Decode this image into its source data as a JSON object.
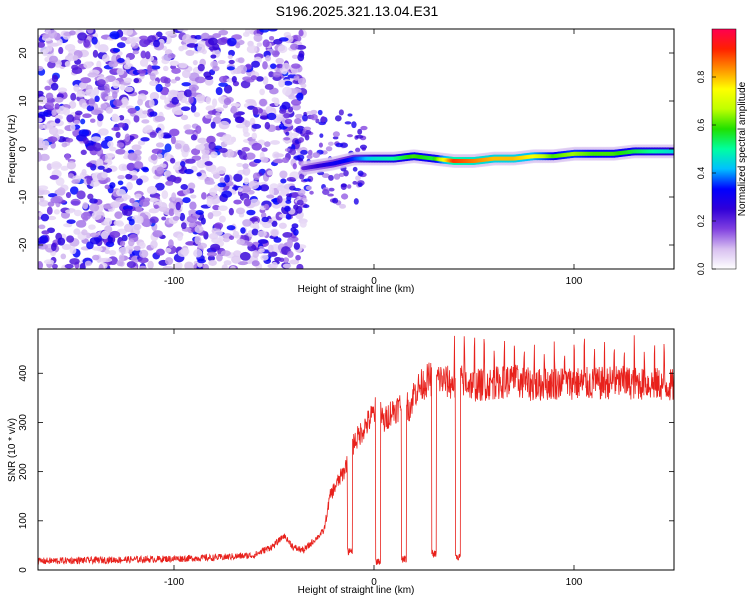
{
  "figure": {
    "title": "S196.2025.321.13.04.E31"
  },
  "chart_data": [
    {
      "type": "heatmap",
      "title": "S196.2025.321.13.04.E31",
      "xlabel": "Height of straight line (km)",
      "ylabel": "Frequency (Hz)",
      "xlim": [
        -168,
        150
      ],
      "ylim": [
        -25,
        25
      ],
      "xticks": [
        -100,
        0,
        100
      ],
      "yticks": [
        -20,
        -10,
        0,
        10,
        20
      ],
      "colorbar": {
        "label": "Normalized spectral amplitude",
        "range": [
          0,
          1
        ],
        "ticks": [
          0.0,
          0.2,
          0.4,
          0.6,
          0.8
        ],
        "colors": [
          "#ffffff",
          "#d8c0f0",
          "#8040e0",
          "#3000d8",
          "#0000ff",
          "#00c0ff",
          "#00ffa0",
          "#20e000",
          "#c0ff00",
          "#ffff00",
          "#ff9000",
          "#ff2000",
          "#ff0050"
        ]
      },
      "noise_region": {
        "x": [
          -168,
          -35
        ],
        "amplitude": [
          0.05,
          0.35
        ]
      },
      "ridge": {
        "x": [
          -35,
          -20,
          -10,
          0,
          10,
          20,
          30,
          40,
          50,
          60,
          70,
          80,
          90,
          100,
          110,
          120,
          130,
          140,
          150
        ],
        "freq": [
          -4,
          -3,
          -2,
          -2,
          -2,
          -1.5,
          -2,
          -2.5,
          -2.5,
          -2,
          -2,
          -1.5,
          -1.5,
          -1,
          -1,
          -1,
          -0.5,
          -0.5,
          -0.5
        ],
        "amplitude": [
          0.2,
          0.3,
          0.35,
          0.45,
          0.5,
          0.6,
          0.55,
          0.9,
          0.85,
          0.8,
          0.8,
          0.75,
          0.6,
          0.65,
          0.6,
          0.6,
          0.55,
          0.5,
          0.45
        ]
      }
    },
    {
      "type": "line",
      "title": "",
      "xlabel": "Height of straight line (km)",
      "ylabel": "SNR (10 * v/v)",
      "xlim": [
        -168,
        150
      ],
      "ylim": [
        0,
        490
      ],
      "xticks": [
        -100,
        0,
        100
      ],
      "yticks": [
        0,
        100,
        200,
        300,
        400
      ],
      "series": [
        {
          "name": "SNR",
          "color": "#e8211c",
          "x": [
            -168,
            -140,
            -110,
            -80,
            -60,
            -50,
            -45,
            -40,
            -35,
            -25,
            -22,
            -18,
            -15,
            -12,
            -10,
            -8,
            -5,
            -3,
            0,
            2,
            5,
            8,
            12,
            15,
            18,
            20,
            22,
            25,
            28,
            30,
            32,
            35,
            38,
            40,
            42,
            45,
            50,
            60,
            70,
            80,
            90,
            100,
            110,
            120,
            130,
            140,
            150
          ],
          "y": [
            18,
            20,
            22,
            25,
            30,
            50,
            70,
            45,
            40,
            80,
            150,
            180,
            200,
            240,
            260,
            270,
            290,
            300,
            320,
            330,
            300,
            320,
            330,
            340,
            330,
            360,
            370,
            380,
            390,
            380,
            390,
            385,
            380,
            375,
            380,
            385,
            375,
            380,
            385,
            375,
            380,
            380,
            378,
            382,
            380,
            378,
            375
          ],
          "spike_period": 5,
          "spike_height": [
            420,
            480
          ],
          "dropouts": [
            {
              "x": -12,
              "y": 30
            },
            {
              "x": 2,
              "y": 10
            },
            {
              "x": 15,
              "y": 15
            },
            {
              "x": 30,
              "y": 25
            },
            {
              "x": 42,
              "y": 20
            }
          ]
        }
      ]
    }
  ]
}
